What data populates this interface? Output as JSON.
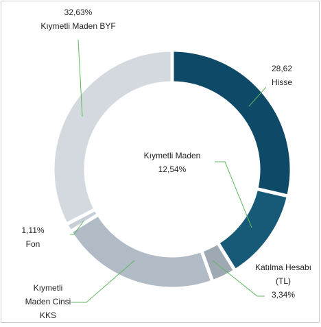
{
  "chart_data": {
    "type": "pie",
    "donut": true,
    "categories": [
      "Hisse",
      "Kıymetli Maden",
      "Katılma Hesabı (TL)",
      "Kıymetli Maden Cinsi KKS",
      "Fon",
      "Kıymetli Maden BYF"
    ],
    "values": [
      28.62,
      12.54,
      3.34,
      21.76,
      1.11,
      32.63
    ],
    "value_labels": [
      "28,62",
      "12,54%",
      "3,34%",
      null,
      "1,11%",
      "32,63%"
    ],
    "colors": [
      "#0e4a67",
      "#175a78",
      "#9ea9b4",
      "#b1bbc5",
      "#c6ced6",
      "#d3d9df"
    ]
  }
}
